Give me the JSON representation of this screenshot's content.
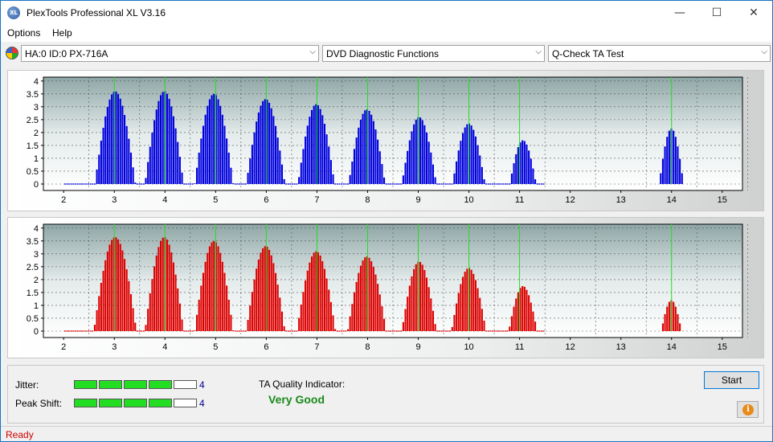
{
  "window": {
    "title": "PlexTools Professional XL V3.16",
    "app_icon_text": "XL",
    "minimize": "—",
    "maximize": "☐",
    "close": "✕"
  },
  "menu": {
    "items": [
      "Options",
      "Help"
    ]
  },
  "toolbar": {
    "drive": "HA:0 ID:0  PX-716A",
    "function": "DVD Diagnostic Functions",
    "test": "Q-Check TA Test",
    "arrow": "⌵"
  },
  "chart_data": [
    {
      "type": "bar",
      "title": "",
      "xlabel": "",
      "ylabel": "",
      "xlim": [
        1.6,
        15.4
      ],
      "ylim": [
        -0.25,
        4.15
      ],
      "x_ticks": [
        2,
        3,
        4,
        5,
        6,
        7,
        8,
        9,
        10,
        11,
        12,
        13,
        14,
        15
      ],
      "y_ticks": [
        0,
        0.5,
        1,
        1.5,
        2,
        2.5,
        3,
        3.5,
        4
      ],
      "y_tick_labels": [
        "0",
        "0.5",
        "1",
        "1.5",
        "2",
        "2.5",
        "3",
        "3.5",
        "4"
      ],
      "marker_lines_x": [
        3,
        4,
        5,
        6,
        7,
        8,
        9,
        10,
        11,
        14
      ],
      "bar_color": "#0000dd",
      "marker_color": "#22dd22",
      "peaks": [
        {
          "center": 3.0,
          "height": 3.6,
          "half_width": 0.4
        },
        {
          "center": 3.97,
          "height": 3.6,
          "half_width": 0.38
        },
        {
          "center": 4.95,
          "height": 3.5,
          "half_width": 0.38
        },
        {
          "center": 5.97,
          "height": 3.3,
          "half_width": 0.38
        },
        {
          "center": 6.97,
          "height": 3.1,
          "half_width": 0.36
        },
        {
          "center": 7.97,
          "height": 2.9,
          "half_width": 0.36
        },
        {
          "center": 9.0,
          "height": 2.6,
          "half_width": 0.34
        },
        {
          "center": 9.98,
          "height": 2.35,
          "half_width": 0.32
        },
        {
          "center": 11.05,
          "height": 1.7,
          "half_width": 0.26
        },
        {
          "center": 13.98,
          "height": 2.15,
          "half_width": 0.24
        }
      ]
    },
    {
      "type": "bar",
      "title": "",
      "xlabel": "",
      "ylabel": "",
      "xlim": [
        1.6,
        15.4
      ],
      "ylim": [
        -0.25,
        4.15
      ],
      "x_ticks": [
        2,
        3,
        4,
        5,
        6,
        7,
        8,
        9,
        10,
        11,
        12,
        13,
        14,
        15
      ],
      "y_ticks": [
        0,
        0.5,
        1,
        1.5,
        2,
        2.5,
        3,
        3.5,
        4
      ],
      "y_tick_labels": [
        "0",
        "0.5",
        "1",
        "1.5",
        "2",
        "2.5",
        "3",
        "3.5",
        "4"
      ],
      "marker_lines_x": [
        3,
        4,
        5,
        6,
        7,
        8,
        9,
        10,
        11,
        14
      ],
      "bar_color": "#dd0000",
      "marker_color": "#22dd22",
      "peaks": [
        {
          "center": 3.0,
          "height": 3.65,
          "half_width": 0.42
        },
        {
          "center": 3.97,
          "height": 3.65,
          "half_width": 0.38
        },
        {
          "center": 4.95,
          "height": 3.5,
          "half_width": 0.38
        },
        {
          "center": 5.97,
          "height": 3.3,
          "half_width": 0.38
        },
        {
          "center": 6.97,
          "height": 3.1,
          "half_width": 0.38
        },
        {
          "center": 7.97,
          "height": 2.9,
          "half_width": 0.38
        },
        {
          "center": 9.0,
          "height": 2.7,
          "half_width": 0.34
        },
        {
          "center": 9.98,
          "height": 2.45,
          "half_width": 0.34
        },
        {
          "center": 11.05,
          "height": 1.75,
          "half_width": 0.28
        },
        {
          "center": 13.98,
          "height": 1.2,
          "half_width": 0.2
        }
      ]
    }
  ],
  "quality": {
    "jitter_label": "Jitter:",
    "jitter_value": "4",
    "jitter_level": 4,
    "peak_shift_label": "Peak Shift:",
    "peak_shift_value": "4",
    "peak_shift_level": 4,
    "segments_total": 5,
    "ta_label": "TA Quality Indicator:",
    "ta_value": "Very Good"
  },
  "buttons": {
    "start": "Start",
    "info_icon_text": "i"
  },
  "status": {
    "text": "Ready"
  }
}
